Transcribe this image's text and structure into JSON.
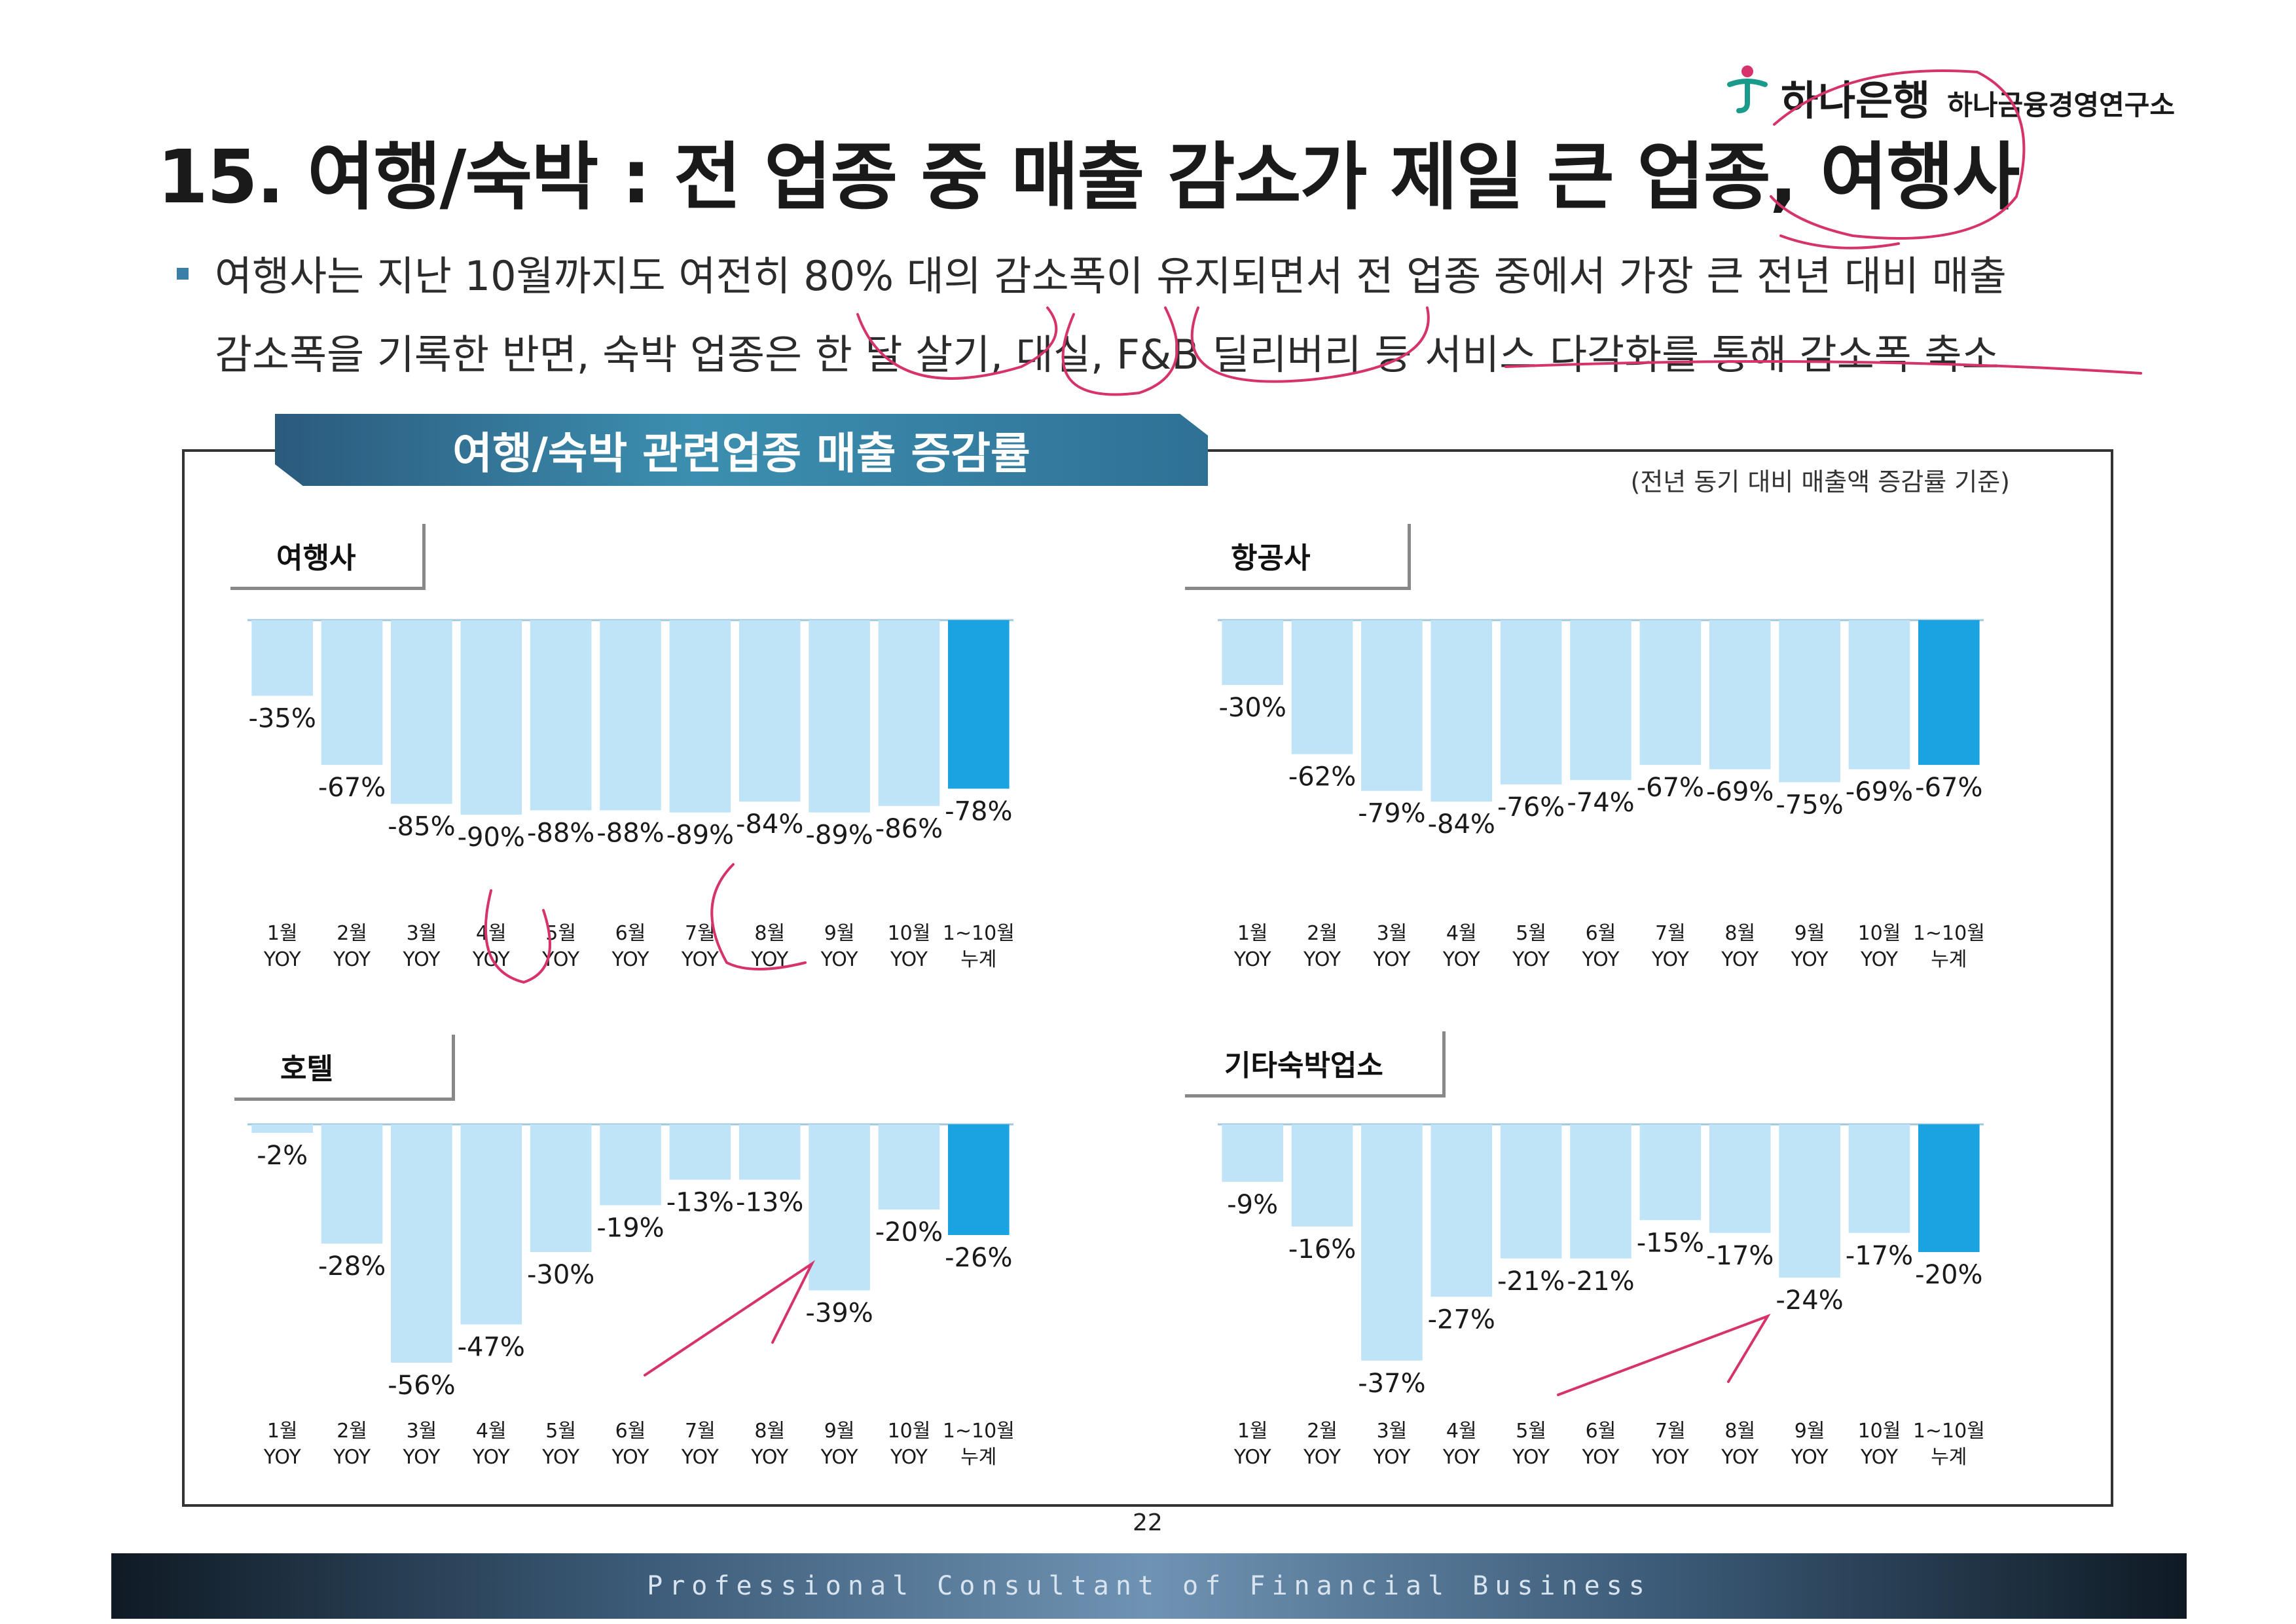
{
  "brand": {
    "bank": "하나은행",
    "institute": "하나금융경영연구소"
  },
  "title": "15. 여행/숙박 : 전 업종 중 매출 감소가 제일 큰 업종, 여행사",
  "bullet": {
    "line1": "여행사는 지난 10월까지도 여전히 80% 대의 감소폭이 유지되면서 전 업종 중에서 가장 큰 전년 대비 매출",
    "line2": "감소폭을 기록한 반면, 숙박 업종은 한 달 살기, 대실, F&B 딜리버리 등 서비스 다각화를 통해 감소폭 축소"
  },
  "banner": "여행/숙박 관련업종 매출 증감률",
  "basis_note": "(전년 동기 대비 매출액 증감률 기준)",
  "page_number": "22",
  "footer_text": "Professional Consultant of Financial Business",
  "colors": {
    "bar": "#bfe4f7",
    "bar_total": "#1aa3e0",
    "annotation": "#d6336c"
  },
  "chart_data": [
    {
      "type": "bar",
      "title": "여행사",
      "ylim": [
        -100,
        0
      ],
      "value_suffix": "%",
      "categories": [
        "1월",
        "2월",
        "3월",
        "4월",
        "5월",
        "6월",
        "7월",
        "8월",
        "9월",
        "10월",
        "1~10월"
      ],
      "sublabels": [
        "YOY",
        "YOY",
        "YOY",
        "YOY",
        "YOY",
        "YOY",
        "YOY",
        "YOY",
        "YOY",
        "YOY",
        "누계"
      ],
      "values": [
        -35,
        -67,
        -85,
        -90,
        -88,
        -88,
        -89,
        -84,
        -89,
        -86,
        -78
      ]
    },
    {
      "type": "bar",
      "title": "항공사",
      "ylim": [
        -100,
        0
      ],
      "value_suffix": "%",
      "categories": [
        "1월",
        "2월",
        "3월",
        "4월",
        "5월",
        "6월",
        "7월",
        "8월",
        "9월",
        "10월",
        "1~10월"
      ],
      "sublabels": [
        "YOY",
        "YOY",
        "YOY",
        "YOY",
        "YOY",
        "YOY",
        "YOY",
        "YOY",
        "YOY",
        "YOY",
        "누계"
      ],
      "values": [
        -30,
        -62,
        -79,
        -84,
        -76,
        -74,
        -67,
        -69,
        -75,
        -69,
        -67
      ]
    },
    {
      "type": "bar",
      "title": "호텔",
      "ylim": [
        -60,
        0
      ],
      "value_suffix": "%",
      "categories": [
        "1월",
        "2월",
        "3월",
        "4월",
        "5월",
        "6월",
        "7월",
        "8월",
        "9월",
        "10월",
        "1~10월"
      ],
      "sublabels": [
        "YOY",
        "YOY",
        "YOY",
        "YOY",
        "YOY",
        "YOY",
        "YOY",
        "YOY",
        "YOY",
        "YOY",
        "누계"
      ],
      "values": [
        -2,
        -28,
        -56,
        -47,
        -30,
        -19,
        -13,
        -13,
        -39,
        -20,
        -26
      ]
    },
    {
      "type": "bar",
      "title": "기타숙박업소",
      "ylim": [
        -40,
        0
      ],
      "value_suffix": "%",
      "categories": [
        "1월",
        "2월",
        "3월",
        "4월",
        "5월",
        "6월",
        "7월",
        "8월",
        "9월",
        "10월",
        "1~10월"
      ],
      "sublabels": [
        "YOY",
        "YOY",
        "YOY",
        "YOY",
        "YOY",
        "YOY",
        "YOY",
        "YOY",
        "YOY",
        "YOY",
        "누계"
      ],
      "values": [
        -9,
        -16,
        -37,
        -27,
        -21,
        -21,
        -15,
        -17,
        -24,
        -17,
        -20
      ]
    }
  ]
}
